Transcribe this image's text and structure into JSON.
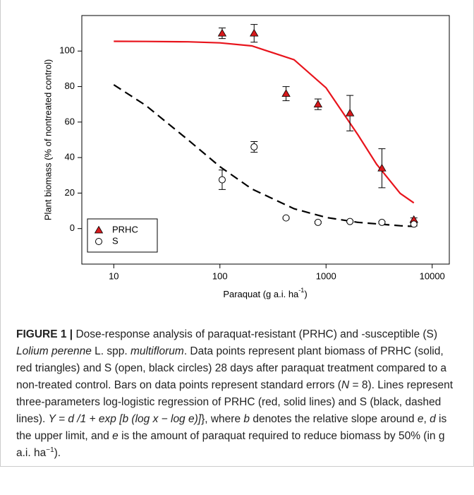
{
  "chart_data": {
    "type": "scatter",
    "x_label": "Paraquat (g a.i. ha",
    "x_label_sup": "-1",
    "x_label_end": ")",
    "y_label": "Plant biomass (% of nontreated control)",
    "log_x": true,
    "xlim": [
      5,
      14500
    ],
    "xticks": [
      10,
      100,
      1000,
      10000
    ],
    "ylim": [
      -20,
      120
    ],
    "yticks": [
      0,
      20,
      40,
      60,
      80,
      100
    ],
    "legend": "lower left",
    "x": [
      105,
      210,
      420,
      840,
      1680,
      3360,
      6720
    ],
    "series": [
      {
        "name": "PRHC",
        "color": "#d7191c",
        "marker": "triangle",
        "values": [
          110,
          110,
          76,
          70,
          65,
          34,
          5
        ],
        "errors": [
          3,
          5,
          4,
          3,
          10,
          11,
          1
        ]
      },
      {
        "name": "S",
        "color": "#000000",
        "marker": "circle",
        "values": [
          27.5,
          46,
          6,
          3.5,
          4,
          3.5,
          2.5
        ],
        "errors": [
          5.5,
          3,
          0.5,
          0.5,
          0.5,
          0.5,
          1
        ]
      }
    ],
    "curves": [
      {
        "color": "#e8141c",
        "dash": false,
        "x": [
          10,
          20,
          50,
          100,
          200,
          500,
          1000,
          2000,
          3000,
          5000,
          6720
        ],
        "values": [
          105.5,
          105.4,
          105.2,
          104.6,
          102.9,
          95.1,
          79.3,
          52.8,
          36.2,
          19.8,
          14.5
        ]
      },
      {
        "color": "#000000",
        "dash": true,
        "x": [
          10,
          20,
          50,
          100,
          200,
          500,
          1000,
          2000,
          5000,
          6720
        ],
        "values": [
          81,
          69.4,
          50,
          34.9,
          22.3,
          11.2,
          6.3,
          3.5,
          1.6,
          1.2
        ]
      }
    ]
  },
  "caption": [
    {
      "text": "FIGURE 1 |",
      "style": "bold"
    },
    {
      "text": " Dose-response analysis of paraquat-resistant (PRHC) and -susceptible (S) ",
      "style": "plain"
    },
    {
      "text": "Lolium perenne",
      "style": "italic"
    },
    {
      "text": " L. spp. ",
      "style": "plain"
    },
    {
      "text": "multiflorum",
      "style": "italic"
    },
    {
      "text": ". Data points represent plant biomass of PRHC (solid, red triangles) and S (open, black circles) 28 days after paraquat treatment compared to a non-treated control. Bars on data points represent standard errors (",
      "style": "plain"
    },
    {
      "text": "N",
      "style": "italic"
    },
    {
      "text": " = 8). Lines represent three-parameters log-logistic regression of PRHC (red, solid lines) and S (black, dashed lines). ",
      "style": "plain"
    },
    {
      "text": "Y = d /1 + exp [b (log x − log e)]",
      "style": "italic"
    },
    {
      "text": "}, where ",
      "style": "plain"
    },
    {
      "text": "b",
      "style": "italic"
    },
    {
      "text": " denotes the relative slope around ",
      "style": "plain"
    },
    {
      "text": "e",
      "style": "italic"
    },
    {
      "text": ", ",
      "style": "plain"
    },
    {
      "text": "d",
      "style": "italic"
    },
    {
      "text": " is the upper limit, and ",
      "style": "plain"
    },
    {
      "text": "e",
      "style": "italic"
    },
    {
      "text": " is the amount of paraquat required to reduce biomass by 50% (in g a.i. ha",
      "style": "plain"
    },
    {
      "text": "−1",
      "style": "sup"
    },
    {
      "text": ").",
      "style": "plain"
    }
  ]
}
